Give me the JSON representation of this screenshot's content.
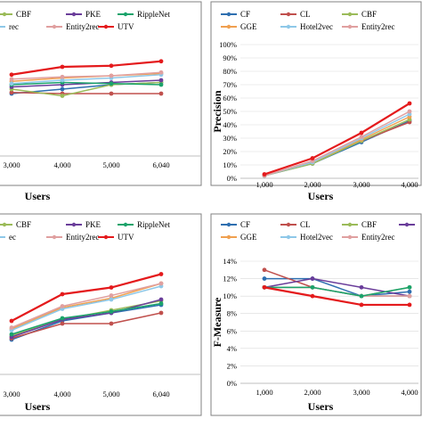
{
  "colors": {
    "CF": "#2e6fb0",
    "CL": "#c0504d",
    "CBF": "#9bbb59",
    "PKE": "#6a3d9a",
    "RippleNet": "#1aa36b",
    "GGE": "#f0a050",
    "Hotel2vec": "#8ec8e8",
    "Entity2rec": "#e0a0a0",
    "UTV": "#e41a1c",
    "frame": "#808080",
    "grid": "#d9d9d9"
  },
  "chart_data": [
    {
      "type": "line",
      "panel": "top-left",
      "xlabel": "Users",
      "ylabel": "",
      "x": [
        "3,000",
        "4,000",
        "5,000",
        "6,040"
      ],
      "legend_rows": [
        [
          {
            "name": "CBF",
            "key": "CBF"
          },
          {
            "name": "PKE",
            "key": "PKE"
          },
          {
            "name": "RippleNet",
            "key": "RippleNet"
          }
        ],
        [
          {
            "name": "rec",
            "key": "Hotel2vec"
          },
          {
            "name": "Entity2rec",
            "key": "Entity2rec"
          },
          {
            "name": "UTV",
            "key": "UTV"
          }
        ]
      ],
      "ylim": [
        0,
        1
      ],
      "y_ticks": [],
      "series": [
        {
          "key": "CF",
          "values": [
            0.56,
            0.6,
            0.64,
            0.66
          ]
        },
        {
          "key": "CL",
          "values": [
            0.57,
            0.56,
            0.56,
            0.56
          ]
        },
        {
          "key": "CBF",
          "values": [
            0.6,
            0.54,
            0.64,
            0.66
          ]
        },
        {
          "key": "PKE",
          "values": [
            0.62,
            0.64,
            0.66,
            0.68
          ]
        },
        {
          "key": "RippleNet",
          "values": [
            0.64,
            0.66,
            0.65,
            0.64
          ]
        },
        {
          "key": "GGE",
          "values": [
            0.67,
            0.7,
            0.72,
            0.74
          ]
        },
        {
          "key": "Hotel2vec",
          "values": [
            0.65,
            0.68,
            0.7,
            0.73
          ]
        },
        {
          "key": "Entity2rec",
          "values": [
            0.69,
            0.71,
            0.72,
            0.75
          ]
        },
        {
          "key": "UTV",
          "values": [
            0.73,
            0.8,
            0.81,
            0.85
          ]
        }
      ]
    },
    {
      "type": "line",
      "panel": "top-right",
      "xlabel": "Users",
      "ylabel": "Precision",
      "x": [
        "1,000",
        "2,000",
        "3,000",
        "4,000"
      ],
      "legend_rows": [
        [
          {
            "name": "CF",
            "key": "CF"
          },
          {
            "name": "CL",
            "key": "CL"
          },
          {
            "name": "CBF",
            "key": "CBF"
          }
        ],
        [
          {
            "name": "GGE",
            "key": "GGE"
          },
          {
            "name": "Hotel2vec",
            "key": "Hotel2vec"
          },
          {
            "name": "Entity2rec",
            "key": "Entity2rec"
          }
        ]
      ],
      "ylim": [
        0,
        100
      ],
      "y_ticks": [
        "0%",
        "10%",
        "20%",
        "30%",
        "40%",
        "50%",
        "60%",
        "70%",
        "80%",
        "90%",
        "100%"
      ],
      "series": [
        {
          "key": "CF",
          "values": [
            2,
            11,
            27,
            43
          ]
        },
        {
          "key": "CL",
          "values": [
            2,
            12,
            28,
            42
          ]
        },
        {
          "key": "CBF",
          "values": [
            2,
            11,
            28,
            44
          ]
        },
        {
          "key": "GGE",
          "values": [
            2,
            12,
            29,
            46
          ]
        },
        {
          "key": "Hotel2vec",
          "values": [
            2,
            12,
            30,
            48
          ]
        },
        {
          "key": "Entity2rec",
          "values": [
            2,
            13,
            31,
            50
          ]
        },
        {
          "key": "UTV",
          "values": [
            3,
            15,
            34,
            56
          ]
        }
      ]
    },
    {
      "type": "line",
      "panel": "bottom-left",
      "xlabel": "Users",
      "ylabel": "",
      "x": [
        "3,000",
        "4,000",
        "5,000",
        "6,040"
      ],
      "legend_rows": [
        [
          {
            "name": "CBF",
            "key": "CBF"
          },
          {
            "name": "PKE",
            "key": "PKE"
          },
          {
            "name": "RippleNet",
            "key": "RippleNet"
          }
        ],
        [
          {
            "name": "ec",
            "key": "Hotel2vec"
          },
          {
            "name": "Entity2rec",
            "key": "Entity2rec"
          },
          {
            "name": "UTV",
            "key": "UTV"
          }
        ]
      ],
      "ylim": [
        0,
        1
      ],
      "y_ticks": [],
      "series": [
        {
          "key": "CF",
          "values": [
            0.26,
            0.4,
            0.46,
            0.52
          ]
        },
        {
          "key": "CL",
          "values": [
            0.27,
            0.38,
            0.38,
            0.46
          ]
        },
        {
          "key": "CBF",
          "values": [
            0.29,
            0.41,
            0.48,
            0.55
          ]
        },
        {
          "key": "PKE",
          "values": [
            0.28,
            0.41,
            0.46,
            0.56
          ]
        },
        {
          "key": "RippleNet",
          "values": [
            0.3,
            0.42,
            0.47,
            0.53
          ]
        },
        {
          "key": "GGE",
          "values": [
            0.34,
            0.5,
            0.57,
            0.68
          ]
        },
        {
          "key": "Hotel2vec",
          "values": [
            0.33,
            0.49,
            0.56,
            0.66
          ]
        },
        {
          "key": "Entity2rec",
          "values": [
            0.35,
            0.51,
            0.59,
            0.68
          ]
        },
        {
          "key": "UTV",
          "values": [
            0.4,
            0.6,
            0.65,
            0.75
          ]
        }
      ]
    },
    {
      "type": "line",
      "panel": "bottom-right",
      "xlabel": "Users",
      "ylabel": "F-Measure",
      "x": [
        "1,000",
        "2,000",
        "3,000",
        "4,000"
      ],
      "legend_rows": [
        [
          {
            "name": "CF",
            "key": "CF"
          },
          {
            "name": "CL",
            "key": "CL"
          },
          {
            "name": "CBF",
            "key": "CBF"
          },
          {
            "name": "",
            "key": "PKE"
          }
        ],
        [
          {
            "name": "GGE",
            "key": "GGE"
          },
          {
            "name": "Hotel2vec",
            "key": "Hotel2vec"
          },
          {
            "name": "Entity2rec",
            "key": "Entity2rec"
          }
        ]
      ],
      "ylim": [
        0,
        14
      ],
      "y_ticks": [
        "0%",
        "2%",
        "4%",
        "6%",
        "8%",
        "10%",
        "12%",
        "14%"
      ],
      "series": [
        {
          "key": "CF",
          "values": [
            12,
            12,
            10,
            10.5
          ]
        },
        {
          "key": "CL",
          "values": [
            13,
            11,
            10,
            10
          ]
        },
        {
          "key": "CBF",
          "values": [
            11,
            11,
            10,
            11
          ]
        },
        {
          "key": "PKE",
          "values": [
            11,
            12,
            11,
            10
          ]
        },
        {
          "key": "GGE",
          "values": [
            11,
            11,
            10,
            10
          ]
        },
        {
          "key": "Hotel2vec",
          "values": [
            11,
            11,
            10,
            10
          ]
        },
        {
          "key": "Entity2rec",
          "values": [
            11,
            11,
            10,
            10
          ]
        },
        {
          "key": "RippleNet",
          "values": [
            11,
            11,
            10,
            11
          ]
        },
        {
          "key": "UTV",
          "values": [
            11,
            10,
            9,
            9
          ]
        }
      ]
    }
  ]
}
